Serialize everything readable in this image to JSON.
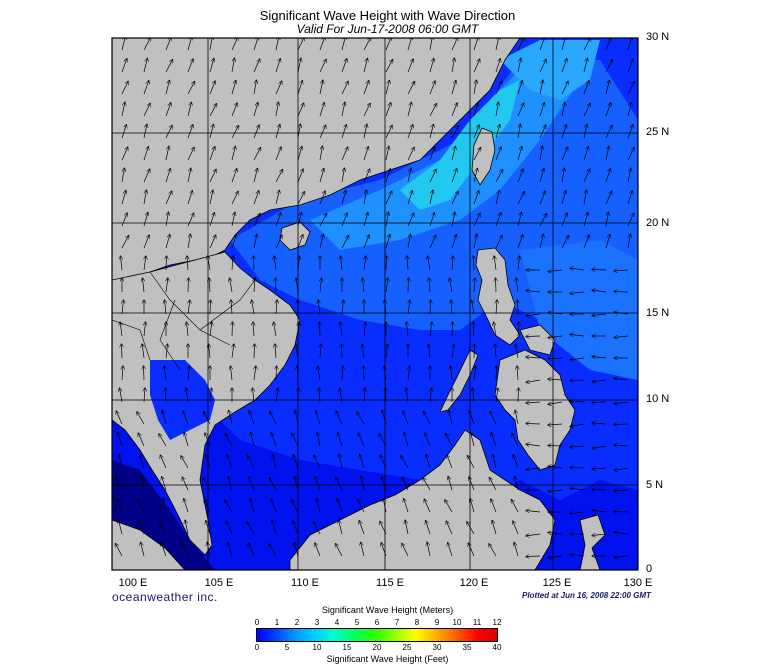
{
  "title": "Significant Wave Height with Wave Direction",
  "subtitle": "Valid For Jun-17-2008 06:00 GMT",
  "lat_labels": [
    "30 N",
    "25 N",
    "20 N",
    "15 N",
    "10 N",
    "5 N",
    "0"
  ],
  "lon_labels": [
    "100 E",
    "105 E",
    "110 E",
    "115 E",
    "120 E",
    "125 E",
    "130 E"
  ],
  "brand": "oceanweather inc.",
  "plotted": "Plotted at Jun 16, 2008 22:00 GMT",
  "colorbar": {
    "title_meters": "Significant Wave Height (Meters)",
    "title_feet": "Significant Wave Height (Feet)",
    "meters_ticks": [
      "0",
      "1",
      "2",
      "3",
      "4",
      "5",
      "6",
      "7",
      "8",
      "9",
      "10",
      "11",
      "12"
    ],
    "feet_ticks": [
      "0",
      "5",
      "10",
      "15",
      "20",
      "25",
      "30",
      "35",
      "40"
    ]
  },
  "colors": {
    "land": "#c0c0c0",
    "sea_deep": "#0000ff",
    "sea_mid": "#0a3cff",
    "sea_light": "#1f8cff",
    "sea_cyan": "#20d0f0",
    "grid": "#000000"
  }
}
